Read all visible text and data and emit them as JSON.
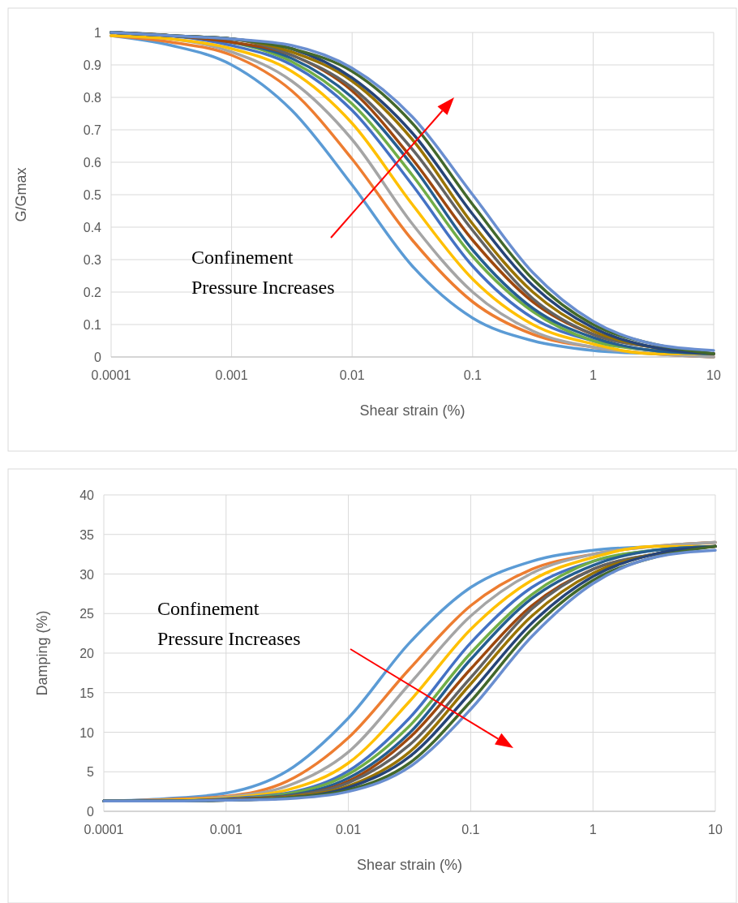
{
  "chart_data": [
    {
      "type": "line",
      "xlabel": "Shear strain (%)",
      "ylabel": "G/Gmax",
      "log": "x",
      "grid": true,
      "marker": "none",
      "line_style": "solid",
      "x": [
        0.0001,
        0.000316,
        0.001,
        0.00316,
        0.01,
        0.0316,
        0.1,
        0.316,
        1,
        3.16,
        10
      ],
      "xlim": [
        0.0001,
        10
      ],
      "xticks": [
        0.0001,
        0.001,
        0.01,
        0.1,
        1,
        10
      ],
      "ylim": [
        0,
        1
      ],
      "yticks": [
        0,
        0.1,
        0.2,
        0.3,
        0.4,
        0.5,
        0.6,
        0.7,
        0.8,
        0.9,
        1
      ],
      "annotations": [
        "Confinement Pressure Increases"
      ],
      "series": [
        {
          "color": "#5b9bd5",
          "values": [
            0.99,
            0.96,
            0.9,
            0.76,
            0.53,
            0.28,
            0.12,
            0.05,
            0.02,
            0.01,
            0
          ]
        },
        {
          "color": "#ed7d31",
          "values": [
            0.99,
            0.97,
            0.93,
            0.82,
            0.61,
            0.36,
            0.17,
            0.07,
            0.03,
            0.01,
            0
          ]
        },
        {
          "color": "#a5a5a5",
          "values": [
            0.99,
            0.98,
            0.94,
            0.85,
            0.67,
            0.41,
            0.2,
            0.08,
            0.03,
            0.01,
            0
          ]
        },
        {
          "color": "#ffc000",
          "values": [
            0.99,
            0.98,
            0.95,
            0.88,
            0.72,
            0.47,
            0.24,
            0.1,
            0.04,
            0.01,
            0.01
          ]
        },
        {
          "color": "#4472c4",
          "values": [
            1,
            0.99,
            0.96,
            0.9,
            0.76,
            0.53,
            0.28,
            0.12,
            0.05,
            0.02,
            0.01
          ]
        },
        {
          "color": "#70ad47",
          "values": [
            1,
            0.99,
            0.97,
            0.91,
            0.78,
            0.56,
            0.31,
            0.14,
            0.05,
            0.02,
            0.01
          ]
        },
        {
          "color": "#255e91",
          "values": [
            1,
            0.99,
            0.97,
            0.92,
            0.8,
            0.59,
            0.33,
            0.15,
            0.06,
            0.02,
            0.01
          ]
        },
        {
          "color": "#9e480e",
          "values": [
            1,
            0.99,
            0.97,
            0.93,
            0.82,
            0.61,
            0.36,
            0.17,
            0.07,
            0.03,
            0.01
          ]
        },
        {
          "color": "#636363",
          "values": [
            1,
            0.99,
            0.98,
            0.93,
            0.83,
            0.64,
            0.39,
            0.18,
            0.07,
            0.03,
            0.01
          ]
        },
        {
          "color": "#997300",
          "values": [
            1,
            0.99,
            0.98,
            0.94,
            0.85,
            0.67,
            0.41,
            0.2,
            0.08,
            0.03,
            0.01
          ]
        },
        {
          "color": "#264478",
          "values": [
            1,
            0.99,
            0.98,
            0.95,
            0.86,
            0.69,
            0.44,
            0.22,
            0.09,
            0.03,
            0.01
          ]
        },
        {
          "color": "#43682b",
          "values": [
            1,
            0.99,
            0.98,
            0.95,
            0.88,
            0.72,
            0.47,
            0.24,
            0.1,
            0.04,
            0.01
          ]
        },
        {
          "color": "#698ed0",
          "values": [
            1,
            0.99,
            0.98,
            0.96,
            0.89,
            0.74,
            0.5,
            0.26,
            0.11,
            0.04,
            0.02
          ]
        }
      ]
    },
    {
      "type": "line",
      "xlabel": "Shear strain (%)",
      "ylabel": "Damping (%)",
      "log": "x",
      "grid": true,
      "marker": "none",
      "line_style": "solid",
      "x": [
        0.0001,
        0.000316,
        0.001,
        0.00316,
        0.01,
        0.0316,
        0.1,
        0.316,
        1,
        3.16,
        10
      ],
      "xlim": [
        0.0001,
        10
      ],
      "xticks": [
        0.0001,
        0.001,
        0.01,
        0.1,
        1,
        10
      ],
      "ylim": [
        0,
        40
      ],
      "yticks": [
        0,
        5,
        10,
        15,
        20,
        25,
        30,
        35,
        40
      ],
      "annotations": [
        "Confinement Pressure Increases"
      ],
      "series": [
        {
          "color": "#5b9bd5",
          "values": [
            1.3,
            1.6,
            2.3,
            5.1,
            11.8,
            21.3,
            28.3,
            31.6,
            33.0,
            33.5,
            34.0
          ]
        },
        {
          "color": "#ed7d31",
          "values": [
            1.3,
            1.5,
            1.9,
            3.8,
            9.3,
            18.0,
            26.0,
            30.6,
            32.5,
            33.5,
            34.0
          ]
        },
        {
          "color": "#a5a5a5",
          "values": [
            1.3,
            1.4,
            1.8,
            3.2,
            7.5,
            16.1,
            24.7,
            30.1,
            32.5,
            33.5,
            34.0
          ]
        },
        {
          "color": "#ffc000",
          "values": [
            1.3,
            1.4,
            1.7,
            2.7,
            6.1,
            13.9,
            23.0,
            29.2,
            32.1,
            33.5,
            33.5
          ]
        },
        {
          "color": "#4472c4",
          "values": [
            1.3,
            1.3,
            1.6,
            2.3,
            5.1,
            11.8,
            21.3,
            28.3,
            31.6,
            33.0,
            33.5
          ]
        },
        {
          "color": "#70ad47",
          "values": [
            1.3,
            1.3,
            1.5,
            2.2,
            4.7,
            10.8,
            20.0,
            27.4,
            31.6,
            33.0,
            33.5
          ]
        },
        {
          "color": "#255e91",
          "values": [
            1.3,
            1.3,
            1.5,
            2.0,
            4.2,
            9.9,
            19.2,
            26.9,
            31.1,
            33.0,
            33.5
          ]
        },
        {
          "color": "#9e480e",
          "values": [
            1.3,
            1.3,
            1.5,
            1.9,
            3.8,
            9.3,
            18.0,
            26.0,
            30.6,
            32.5,
            33.5
          ]
        },
        {
          "color": "#636363",
          "values": [
            1.3,
            1.3,
            1.4,
            1.9,
            3.6,
            8.4,
            16.9,
            25.6,
            30.6,
            32.5,
            33.5
          ]
        },
        {
          "color": "#997300",
          "values": [
            1.3,
            1.3,
            1.4,
            1.8,
            3.2,
            7.5,
            16.1,
            24.7,
            30.1,
            32.5,
            33.5
          ]
        },
        {
          "color": "#264478",
          "values": [
            1.3,
            1.3,
            1.4,
            1.7,
            3.0,
            6.9,
            15.0,
            23.8,
            29.7,
            32.5,
            33.5
          ]
        },
        {
          "color": "#43682b",
          "values": [
            1.3,
            1.3,
            1.4,
            1.7,
            2.7,
            6.1,
            13.9,
            23.0,
            29.2,
            32.1,
            33.5
          ]
        },
        {
          "color": "#698ed0",
          "values": [
            1.3,
            1.3,
            1.4,
            1.6,
            2.5,
            5.6,
            12.9,
            22.1,
            28.8,
            32.1,
            33.0
          ]
        }
      ]
    }
  ]
}
